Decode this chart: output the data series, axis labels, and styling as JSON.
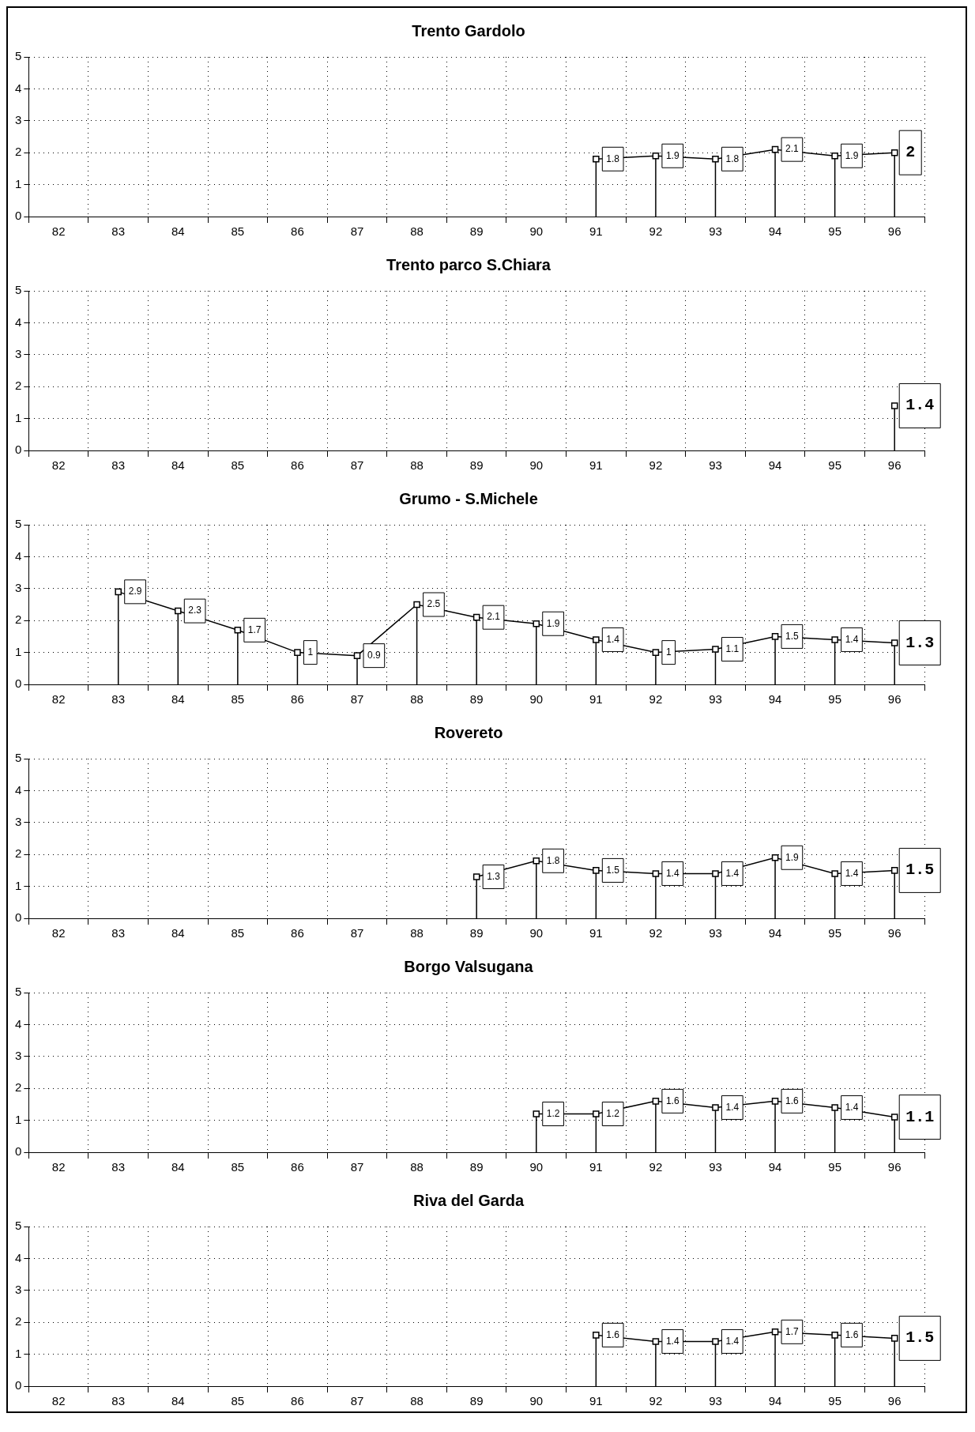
{
  "chart_data": [
    {
      "type": "line",
      "title": "Trento Gardolo",
      "categories": [
        "82",
        "83",
        "84",
        "85",
        "86",
        "87",
        "88",
        "89",
        "90",
        "91",
        "92",
        "93",
        "94",
        "95",
        "96"
      ],
      "ylim": [
        0,
        5
      ],
      "yticks": [
        0,
        1,
        2,
        3,
        4,
        5
      ],
      "grid": true,
      "marker": "square",
      "series": [
        {
          "color": "#000000",
          "values": [
            null,
            null,
            null,
            null,
            null,
            null,
            null,
            null,
            null,
            1.8,
            1.9,
            1.8,
            2.1,
            1.9,
            2
          ],
          "value_labels": [
            null,
            null,
            null,
            null,
            null,
            null,
            null,
            null,
            null,
            "1.8",
            "1.9",
            "1.8",
            "2.1",
            "1.9",
            "2"
          ]
        }
      ]
    },
    {
      "type": "line",
      "title": "Trento parco S.Chiara",
      "categories": [
        "82",
        "83",
        "84",
        "85",
        "86",
        "87",
        "88",
        "89",
        "90",
        "91",
        "92",
        "93",
        "94",
        "95",
        "96"
      ],
      "ylim": [
        0,
        5
      ],
      "yticks": [
        0,
        1,
        2,
        3,
        4,
        5
      ],
      "grid": true,
      "marker": "square",
      "series": [
        {
          "color": "#000000",
          "values": [
            null,
            null,
            null,
            null,
            null,
            null,
            null,
            null,
            null,
            null,
            null,
            null,
            null,
            null,
            1.4
          ],
          "value_labels": [
            null,
            null,
            null,
            null,
            null,
            null,
            null,
            null,
            null,
            null,
            null,
            null,
            null,
            null,
            "1.4"
          ]
        }
      ]
    },
    {
      "type": "line",
      "title": "Grumo - S.Michele",
      "categories": [
        "82",
        "83",
        "84",
        "85",
        "86",
        "87",
        "88",
        "89",
        "90",
        "91",
        "92",
        "93",
        "94",
        "95",
        "96"
      ],
      "ylim": [
        0,
        5
      ],
      "yticks": [
        0,
        1,
        2,
        3,
        4,
        5
      ],
      "grid": true,
      "marker": "square",
      "series": [
        {
          "color": "#000000",
          "values": [
            null,
            2.9,
            2.3,
            1.7,
            1,
            0.9,
            2.5,
            2.1,
            1.9,
            1.4,
            1,
            1.1,
            1.5,
            1.4,
            1.3
          ],
          "value_labels": [
            null,
            "2.9",
            "2.3",
            "1.7",
            "1",
            "0.9",
            "2.5",
            "2.1",
            "1.9",
            "1.4",
            "1",
            "1.1",
            "1.5",
            "1.4",
            "1.3"
          ]
        }
      ]
    },
    {
      "type": "line",
      "title": "Rovereto",
      "categories": [
        "82",
        "83",
        "84",
        "85",
        "86",
        "87",
        "88",
        "89",
        "90",
        "91",
        "92",
        "93",
        "94",
        "95",
        "96"
      ],
      "ylim": [
        0,
        5
      ],
      "yticks": [
        0,
        1,
        2,
        3,
        4,
        5
      ],
      "grid": true,
      "marker": "square",
      "series": [
        {
          "color": "#000000",
          "values": [
            null,
            null,
            null,
            null,
            null,
            null,
            null,
            1.3,
            1.8,
            1.5,
            1.4,
            1.4,
            1.9,
            1.4,
            1.5
          ],
          "value_labels": [
            null,
            null,
            null,
            null,
            null,
            null,
            null,
            "1.3",
            "1.8",
            "1.5",
            "1.4",
            "1.4",
            "1.9",
            "1.4",
            "1.5"
          ]
        }
      ]
    },
    {
      "type": "line",
      "title": "Borgo Valsugana",
      "categories": [
        "82",
        "83",
        "84",
        "85",
        "86",
        "87",
        "88",
        "89",
        "90",
        "91",
        "92",
        "93",
        "94",
        "95",
        "96"
      ],
      "ylim": [
        0,
        5
      ],
      "yticks": [
        0,
        1,
        2,
        3,
        4,
        5
      ],
      "grid": true,
      "marker": "square",
      "series": [
        {
          "color": "#000000",
          "values": [
            null,
            null,
            null,
            null,
            null,
            null,
            null,
            null,
            1.2,
            1.2,
            1.6,
            1.4,
            1.6,
            1.4,
            1.1
          ],
          "value_labels": [
            null,
            null,
            null,
            null,
            null,
            null,
            null,
            null,
            "1.2",
            "1.2",
            "1.6",
            "1.4",
            "1.6",
            "1.4",
            "1.1"
          ]
        }
      ]
    },
    {
      "type": "line",
      "title": "Riva del Garda",
      "categories": [
        "82",
        "83",
        "84",
        "85",
        "86",
        "87",
        "88",
        "89",
        "90",
        "91",
        "92",
        "93",
        "94",
        "95",
        "96"
      ],
      "ylim": [
        0,
        5
      ],
      "yticks": [
        0,
        1,
        2,
        3,
        4,
        5
      ],
      "grid": true,
      "marker": "square",
      "series": [
        {
          "color": "#000000",
          "values": [
            null,
            null,
            null,
            null,
            null,
            null,
            null,
            null,
            null,
            1.6,
            1.4,
            1.4,
            1.7,
            1.6,
            1.5
          ],
          "value_labels": [
            null,
            null,
            null,
            null,
            null,
            null,
            null,
            null,
            null,
            "1.6",
            "1.4",
            "1.4",
            "1.7",
            "1.6",
            "1.5"
          ]
        }
      ]
    }
  ]
}
